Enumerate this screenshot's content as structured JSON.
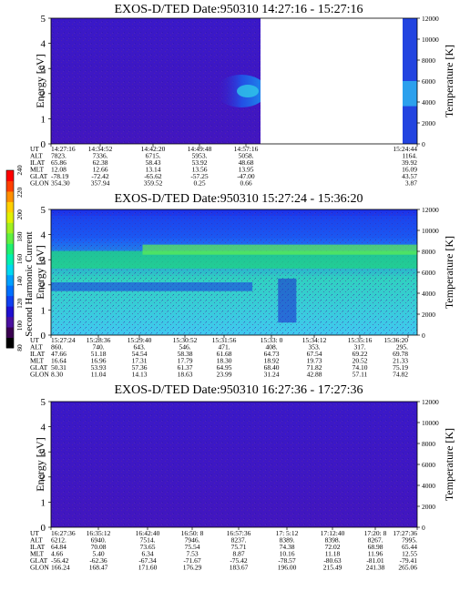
{
  "colorbar": {
    "label": "Second Harmonic Current",
    "ticks": [
      "80",
      "100",
      "120",
      "140",
      "160",
      "180",
      "200",
      "220",
      "240"
    ],
    "colors": [
      "#000000",
      "#3a0050",
      "#4a10a0",
      "#2010d0",
      "#1040f0",
      "#0070ff",
      "#00a0ff",
      "#00d8f0",
      "#00f0b0",
      "#20f070",
      "#60f040",
      "#a0f020",
      "#e0f000",
      "#ffd000",
      "#ff9000",
      "#ff4000",
      "#ff0000"
    ]
  },
  "chart_data": [
    {
      "type": "heatmap",
      "title": "EXOS-D/TED   Date:950310   14:27:16 - 15:27:16",
      "ylabel": "Energy [eV]",
      "ylabel_right": "Temperature [K]",
      "ylim": [
        0,
        5
      ],
      "ylim_right": [
        0,
        12000
      ],
      "yticks": [
        "0",
        "1",
        "2",
        "3",
        "4",
        "5"
      ],
      "yticks_right": [
        "0",
        "2000",
        "4000",
        "6000",
        "8000",
        "10000",
        "12000"
      ],
      "table": {
        "rows": [
          {
            "name": "UT",
            "values": [
              "14:27:16",
              "14:34:52",
              "14:42:20",
              "14:49:48",
              "14:57:16",
              "",
              "15:24:44"
            ]
          },
          {
            "name": "ALT",
            "values": [
              "7823.",
              "7336.",
              "6715.",
              "5953.",
              "5058.",
              "",
              "1164."
            ]
          },
          {
            "name": "ILAT",
            "values": [
              "65.86",
              "62.38",
              "58.43",
              "53.92",
              "48.68",
              "",
              "39.92"
            ]
          },
          {
            "name": "MLT",
            "values": [
              "12.08",
              "12.66",
              "13.14",
              "13.56",
              "13.95",
              "",
              "16.09"
            ]
          },
          {
            "name": "GLAT",
            "values": [
              "-78.19",
              "-72.42",
              "-65.62",
              "-57.25",
              "-47.00",
              "",
              "43.57"
            ]
          },
          {
            "name": "GLON",
            "values": [
              "354.30",
              "357.94",
              "359.52",
              "0.25",
              "0.66",
              "",
              "3.87"
            ]
          }
        ]
      }
    },
    {
      "type": "heatmap",
      "title": "EXOS-D/TED   Date:950310   15:27:24 - 15:36:20",
      "ylabel": "Energy [eV]",
      "ylabel_right": "Temperature [K]",
      "ylim": [
        0,
        5
      ],
      "ylim_right": [
        0,
        12000
      ],
      "yticks": [
        "0",
        "1",
        "2",
        "3",
        "4",
        "5"
      ],
      "yticks_right": [
        "0",
        "2000",
        "4000",
        "6000",
        "8000",
        "10000",
        "12000"
      ],
      "table": {
        "rows": [
          {
            "name": "UT",
            "values": [
              "15:27:24",
              "15:28:36",
              "15:29:40",
              "15:30:52",
              "15:31:56",
              "15:33: 0",
              "15:34:12",
              "15:35:16",
              "15:36:20"
            ]
          },
          {
            "name": "ALT",
            "values": [
              "860.",
              "740.",
              "643.",
              "546.",
              "471.",
              "408.",
              "353.",
              "317.",
              "295."
            ]
          },
          {
            "name": "ILAT",
            "values": [
              "47.66",
              "51.18",
              "54.54",
              "58.38",
              "61.68",
              "64.73",
              "67.54",
              "69.22",
              "69.78"
            ]
          },
          {
            "name": "MLT",
            "values": [
              "16.64",
              "16.96",
              "17.31",
              "17.79",
              "18.30",
              "18.92",
              "19.73",
              "20.52",
              "21.33"
            ]
          },
          {
            "name": "GLAT",
            "values": [
              "50.31",
              "53.93",
              "57.36",
              "61.37",
              "64.95",
              "68.40",
              "71.82",
              "74.10",
              "75.19"
            ]
          },
          {
            "name": "GLON",
            "values": [
              "8.30",
              "11.04",
              "14.13",
              "18.63",
              "23.99",
              "31.24",
              "42.88",
              "57.11",
              "74.82"
            ]
          }
        ]
      }
    },
    {
      "type": "heatmap",
      "title": "EXOS-D/TED   Date:950310   16:27:36 - 17:27:36",
      "ylabel": "Energy [eV]",
      "ylabel_right": "Temperature [K]",
      "ylim": [
        0,
        5
      ],
      "ylim_right": [
        0,
        12000
      ],
      "yticks": [
        "0",
        "1",
        "2",
        "3",
        "4",
        "5"
      ],
      "yticks_right": [
        "0",
        "2000",
        "4000",
        "6000",
        "8000",
        "10000",
        "12000"
      ],
      "table": {
        "rows": [
          {
            "name": "UT",
            "values": [
              "16:27:36",
              "16:35:12",
              "16:42:40",
              "16:50: 8",
              "16:57:36",
              "17: 5:12",
              "17:12:40",
              "17:20: 8",
              "17:27:36"
            ]
          },
          {
            "name": "ALT",
            "values": [
              "6212.",
              "6940.",
              "7514.",
              "7946.",
              "8237.",
              "8389.",
              "8398.",
              "8267.",
              "7995."
            ]
          },
          {
            "name": "ILAT",
            "values": [
              "64.84",
              "70.08",
              "73.65",
              "75.54",
              "75.71",
              "74.38",
              "72.02",
              "68.98",
              "65.44"
            ]
          },
          {
            "name": "MLT",
            "values": [
              "4.66",
              "5.40",
              "6.34",
              "7.53",
              "8.87",
              "10.16",
              "11.18",
              "11.96",
              "12.55"
            ]
          },
          {
            "name": "GLAT",
            "values": [
              "-56.42",
              "-62.36",
              "-67.34",
              "-71.67",
              "-75.42",
              "-78.57",
              "-80.63",
              "-81.01",
              "-79.41"
            ]
          },
          {
            "name": "GLON",
            "values": [
              "166.24",
              "168.47",
              "171.60",
              "176.29",
              "183.67",
              "196.00",
              "215.49",
              "241.38",
              "265.06"
            ]
          }
        ]
      }
    }
  ]
}
